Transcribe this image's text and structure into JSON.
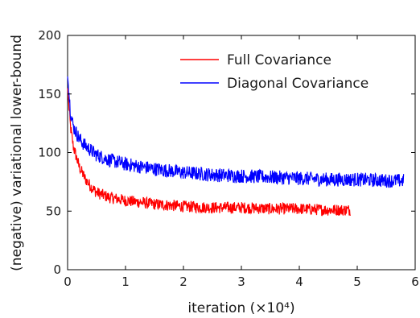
{
  "chart_data": {
    "type": "line",
    "title": "",
    "xlabel": "iteration (×10⁴)",
    "ylabel": "(negative) variational lower-bound",
    "xlim": [
      0,
      6
    ],
    "ylim": [
      0,
      200
    ],
    "xticks": [
      "0",
      "1",
      "2",
      "3",
      "4",
      "5",
      "6"
    ],
    "yticks": [
      "0",
      "50",
      "100",
      "150",
      "200"
    ],
    "grid": false,
    "legend_position": "top-right",
    "series": [
      {
        "name": "Full Covariance",
        "color": "#ff0000",
        "x": [
          0,
          0.05,
          0.1,
          0.2,
          0.3,
          0.4,
          0.5,
          0.7,
          1.0,
          1.5,
          2.0,
          2.5,
          3.0,
          3.5,
          4.0,
          4.5,
          4.88
        ],
        "y": [
          155,
          122,
          105,
          88,
          78,
          71,
          66,
          62,
          59,
          56,
          54,
          53,
          53,
          52,
          52,
          51,
          51
        ]
      },
      {
        "name": "Diagonal Covariance",
        "color": "#0000ff",
        "x": [
          0,
          0.05,
          0.1,
          0.2,
          0.3,
          0.5,
          0.7,
          1.0,
          1.5,
          2.0,
          2.5,
          3.0,
          3.5,
          4.0,
          4.5,
          5.0,
          5.5,
          5.8
        ],
        "y": [
          165,
          135,
          122,
          112,
          106,
          98,
          94,
          90,
          86,
          83,
          81,
          80,
          79,
          78,
          77,
          77,
          76,
          76
        ]
      }
    ]
  }
}
